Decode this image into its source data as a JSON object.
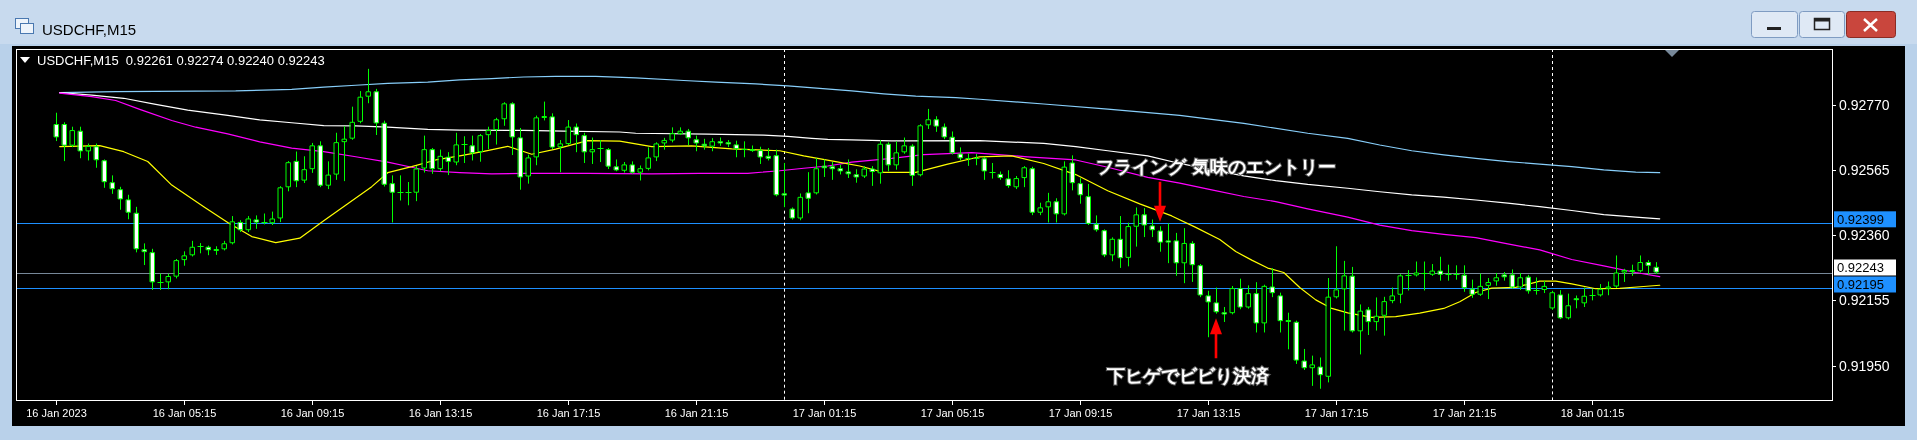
{
  "chart_data": {
    "type": "candlestick",
    "title": "USDCHF,M15",
    "subtitle": "USDCHF,M15  0.92261 0.92274 0.92240 0.92243",
    "color": "#00ff00",
    "x": [
      "2023-01-16T01:15",
      "2023-01-16T01:30",
      "2023-01-16T01:45",
      "2023-01-16T02:00",
      "2023-01-16T02:15",
      "2023-01-16T02:30",
      "2023-01-16T02:45",
      "2023-01-16T03:00",
      "2023-01-16T03:15",
      "2023-01-16T03:30",
      "2023-01-16T03:45",
      "2023-01-16T04:00",
      "2023-01-16T04:15",
      "2023-01-16T04:30",
      "2023-01-16T04:45",
      "2023-01-16T05:00",
      "2023-01-16T05:15",
      "2023-01-16T05:30",
      "2023-01-16T05:45",
      "2023-01-16T06:00",
      "2023-01-16T06:15",
      "2023-01-16T06:30",
      "2023-01-16T06:45",
      "2023-01-16T07:00",
      "2023-01-16T07:15",
      "2023-01-16T07:30",
      "2023-01-16T07:45",
      "2023-01-16T08:00",
      "2023-01-16T08:15",
      "2023-01-16T08:30",
      "2023-01-16T08:45",
      "2023-01-16T09:00",
      "2023-01-16T09:15",
      "2023-01-16T09:30",
      "2023-01-16T09:45",
      "2023-01-16T10:00",
      "2023-01-16T10:15",
      "2023-01-16T10:30",
      "2023-01-16T10:45",
      "2023-01-16T11:00",
      "2023-01-16T11:15",
      "2023-01-16T11:30",
      "2023-01-16T11:45",
      "2023-01-16T12:00",
      "2023-01-16T12:15",
      "2023-01-16T12:30",
      "2023-01-16T12:45",
      "2023-01-16T13:00",
      "2023-01-16T13:15",
      "2023-01-16T13:30",
      "2023-01-16T13:45",
      "2023-01-16T14:00",
      "2023-01-16T14:15",
      "2023-01-16T14:30",
      "2023-01-16T14:45",
      "2023-01-16T15:00",
      "2023-01-16T15:15",
      "2023-01-16T15:30",
      "2023-01-16T15:45",
      "2023-01-16T16:00",
      "2023-01-16T16:15",
      "2023-01-16T16:30",
      "2023-01-16T16:45",
      "2023-01-16T17:00",
      "2023-01-16T17:15",
      "2023-01-16T17:30",
      "2023-01-16T17:45",
      "2023-01-16T18:00",
      "2023-01-16T18:15",
      "2023-01-16T18:30",
      "2023-01-16T18:45",
      "2023-01-16T19:00",
      "2023-01-16T19:15",
      "2023-01-16T19:30",
      "2023-01-16T19:45",
      "2023-01-16T20:00",
      "2023-01-16T20:15",
      "2023-01-16T20:30",
      "2023-01-16T20:45",
      "2023-01-16T21:00",
      "2023-01-16T21:15",
      "2023-01-16T21:30",
      "2023-01-16T21:45",
      "2023-01-16T22:00",
      "2023-01-16T22:15",
      "2023-01-16T22:30",
      "2023-01-16T22:45",
      "2023-01-16T23:00",
      "2023-01-16T23:15",
      "2023-01-16T23:30",
      "2023-01-16T23:45",
      "2023-01-17T00:00",
      "2023-01-17T00:15",
      "2023-01-17T00:30",
      "2023-01-17T00:45",
      "2023-01-17T01:00",
      "2023-01-17T01:15",
      "2023-01-17T01:30",
      "2023-01-17T01:45",
      "2023-01-17T02:00",
      "2023-01-17T02:15",
      "2023-01-17T02:30",
      "2023-01-17T02:45",
      "2023-01-17T03:00",
      "2023-01-17T03:15",
      "2023-01-17T03:30",
      "2023-01-17T03:45",
      "2023-01-17T04:00",
      "2023-01-17T04:15",
      "2023-01-17T04:30",
      "2023-01-17T04:45",
      "2023-01-17T05:00",
      "2023-01-17T05:15",
      "2023-01-17T05:30",
      "2023-01-17T05:45",
      "2023-01-17T06:00",
      "2023-01-17T06:15",
      "2023-01-17T06:30",
      "2023-01-17T06:45",
      "2023-01-17T07:00",
      "2023-01-17T07:15",
      "2023-01-17T07:30",
      "2023-01-17T07:45",
      "2023-01-17T08:00",
      "2023-01-17T08:15",
      "2023-01-17T08:30",
      "2023-01-17T08:45",
      "2023-01-17T09:00",
      "2023-01-17T09:15",
      "2023-01-17T09:30",
      "2023-01-17T09:45",
      "2023-01-17T10:00",
      "2023-01-17T10:15",
      "2023-01-17T10:30",
      "2023-01-17T10:45",
      "2023-01-17T11:00",
      "2023-01-17T11:15",
      "2023-01-17T11:30",
      "2023-01-17T11:45",
      "2023-01-17T12:00",
      "2023-01-17T12:15",
      "2023-01-17T12:30",
      "2023-01-17T12:45",
      "2023-01-17T13:00",
      "2023-01-17T13:15",
      "2023-01-17T13:30",
      "2023-01-17T13:45",
      "2023-01-17T14:00",
      "2023-01-17T14:15",
      "2023-01-17T14:30",
      "2023-01-17T14:45",
      "2023-01-17T15:00",
      "2023-01-17T15:15",
      "2023-01-17T15:30",
      "2023-01-17T15:45",
      "2023-01-17T16:00",
      "2023-01-17T16:15",
      "2023-01-17T16:30",
      "2023-01-17T16:45",
      "2023-01-17T17:00",
      "2023-01-17T17:15",
      "2023-01-17T17:30",
      "2023-01-17T17:45",
      "2023-01-17T18:00",
      "2023-01-17T18:15",
      "2023-01-17T18:30",
      "2023-01-17T18:45",
      "2023-01-17T19:00",
      "2023-01-17T19:15",
      "2023-01-17T19:30",
      "2023-01-17T19:45",
      "2023-01-17T20:00",
      "2023-01-17T20:15",
      "2023-01-17T20:30",
      "2023-01-17T20:45",
      "2023-01-17T21:00",
      "2023-01-17T21:15",
      "2023-01-17T21:30",
      "2023-01-17T21:45",
      "2023-01-17T22:00",
      "2023-01-17T22:15",
      "2023-01-17T22:30",
      "2023-01-17T22:45",
      "2023-01-17T23:00",
      "2023-01-17T23:15",
      "2023-01-17T23:30",
      "2023-01-17T23:45",
      "2023-01-18T00:00",
      "2023-01-18T00:15",
      "2023-01-18T00:30",
      "2023-01-18T00:45",
      "2023-01-18T01:00",
      "2023-01-18T01:15",
      "2023-01-18T01:30",
      "2023-01-18T01:45",
      "2023-01-18T02:00",
      "2023-01-18T02:15",
      "2023-01-18T02:30",
      "2023-01-18T02:45",
      "2023-01-18T03:00",
      "2023-01-18T03:15"
    ],
    "ohlc": [
      [
        0.9271,
        0.92744,
        0.92658,
        0.92668
      ],
      [
        0.9271,
        0.92714,
        0.92595,
        0.92642
      ],
      [
        0.92642,
        0.927,
        0.92639,
        0.92691
      ],
      [
        0.92689,
        0.927,
        0.92604,
        0.92624
      ],
      [
        0.92624,
        0.92647,
        0.92597,
        0.92641
      ],
      [
        0.9264,
        0.92647,
        0.92574,
        0.92596
      ],
      [
        0.92596,
        0.92597,
        0.92511,
        0.92527
      ],
      [
        0.92527,
        0.92547,
        0.92492,
        0.92505
      ],
      [
        0.92505,
        0.92511,
        0.92442,
        0.92473
      ],
      [
        0.92473,
        0.92486,
        0.92412,
        0.92431
      ],
      [
        0.92431,
        0.92448,
        0.92308,
        0.92316
      ],
      [
        0.92316,
        0.92333,
        0.92268,
        0.92307
      ],
      [
        0.92307,
        0.92316,
        0.9219,
        0.92212
      ],
      [
        0.92212,
        0.92238,
        0.9219,
        0.92213
      ],
      [
        0.92212,
        0.92238,
        0.92192,
        0.92232
      ],
      [
        0.9223,
        0.92284,
        0.92226,
        0.92282
      ],
      [
        0.92282,
        0.92308,
        0.92266,
        0.92297
      ],
      [
        0.92297,
        0.92341,
        0.92295,
        0.92324
      ],
      [
        0.92324,
        0.92334,
        0.92305,
        0.92325
      ],
      [
        0.92324,
        0.92326,
        0.92299,
        0.92313
      ],
      [
        0.92313,
        0.92324,
        0.923,
        0.92315
      ],
      [
        0.92316,
        0.92341,
        0.92314,
        0.92335
      ],
      [
        0.92335,
        0.92419,
        0.92333,
        0.92404
      ],
      [
        0.92402,
        0.92406,
        0.92372,
        0.92376
      ],
      [
        0.92376,
        0.92419,
        0.92372,
        0.92413
      ],
      [
        0.9241,
        0.92421,
        0.92382,
        0.924
      ],
      [
        0.924,
        0.92427,
        0.92396,
        0.92399
      ],
      [
        0.92398,
        0.92433,
        0.92394,
        0.92413
      ],
      [
        0.92413,
        0.92513,
        0.92403,
        0.92511
      ],
      [
        0.92511,
        0.92592,
        0.925,
        0.9259
      ],
      [
        0.92594,
        0.92622,
        0.92513,
        0.9253
      ],
      [
        0.92532,
        0.92607,
        0.92526,
        0.92568
      ],
      [
        0.92568,
        0.92649,
        0.92558,
        0.92643
      ],
      [
        0.92643,
        0.92654,
        0.92513,
        0.92516
      ],
      [
        0.92516,
        0.92591,
        0.92507,
        0.92551
      ],
      [
        0.92551,
        0.92681,
        0.92536,
        0.92653
      ],
      [
        0.92653,
        0.92702,
        0.92532,
        0.92664
      ],
      [
        0.92664,
        0.92763,
        0.92662,
        0.92717
      ],
      [
        0.92717,
        0.92812,
        0.92714,
        0.92796
      ],
      [
        0.92796,
        0.92882,
        0.92777,
        0.92813
      ],
      [
        0.92813,
        0.92819,
        0.92677,
        0.92712
      ],
      [
        0.92714,
        0.92719,
        0.92515,
        0.92519
      ],
      [
        0.92524,
        0.92547,
        0.92402,
        0.92494
      ],
      [
        0.92496,
        0.92547,
        0.92471,
        0.92496
      ],
      [
        0.92495,
        0.92526,
        0.92456,
        0.92496
      ],
      [
        0.92494,
        0.92576,
        0.92469,
        0.9257
      ],
      [
        0.9257,
        0.92672,
        0.92559,
        0.92631
      ],
      [
        0.92631,
        0.92633,
        0.92555,
        0.92568
      ],
      [
        0.92568,
        0.92628,
        0.92563,
        0.9261
      ],
      [
        0.92607,
        0.9262,
        0.92551,
        0.92591
      ],
      [
        0.92589,
        0.92681,
        0.92582,
        0.92646
      ],
      [
        0.92644,
        0.9267,
        0.92589,
        0.92645
      ],
      [
        0.92643,
        0.92672,
        0.92597,
        0.92618
      ],
      [
        0.92622,
        0.92677,
        0.92593,
        0.92675
      ],
      [
        0.92675,
        0.927,
        0.92633,
        0.92691
      ],
      [
        0.92691,
        0.92728,
        0.92647,
        0.92725
      ],
      [
        0.92725,
        0.92777,
        0.92706,
        0.92775
      ],
      [
        0.92775,
        0.92777,
        0.92614,
        0.92668
      ],
      [
        0.92668,
        0.92696,
        0.92505,
        0.92542
      ],
      [
        0.92545,
        0.92612,
        0.92524,
        0.92605
      ],
      [
        0.92605,
        0.92735,
        0.92582,
        0.92731
      ],
      [
        0.92731,
        0.92779,
        0.92723,
        0.92733
      ],
      [
        0.92734,
        0.92742,
        0.92633,
        0.92636
      ],
      [
        0.92637,
        0.92658,
        0.9256,
        0.92649
      ],
      [
        0.92647,
        0.92721,
        0.92645,
        0.92702
      ],
      [
        0.92702,
        0.9271,
        0.92623,
        0.92675
      ],
      [
        0.92675,
        0.92681,
        0.92589,
        0.92621
      ],
      [
        0.92621,
        0.92666,
        0.92586,
        0.92631
      ],
      [
        0.92631,
        0.92658,
        0.92592,
        0.92632
      ],
      [
        0.92631,
        0.92633,
        0.9257,
        0.92576
      ],
      [
        0.92577,
        0.92597,
        0.92563,
        0.92564
      ],
      [
        0.92563,
        0.92589,
        0.92559,
        0.92583
      ],
      [
        0.92583,
        0.92591,
        0.92555,
        0.92557
      ],
      [
        0.92557,
        0.92578,
        0.92534,
        0.92571
      ],
      [
        0.92569,
        0.92635,
        0.92566,
        0.92605
      ],
      [
        0.92605,
        0.92651,
        0.92595,
        0.92649
      ],
      [
        0.92649,
        0.92665,
        0.92631,
        0.9266
      ],
      [
        0.92658,
        0.92698,
        0.92654,
        0.92681
      ],
      [
        0.92679,
        0.92698,
        0.92677,
        0.92689
      ],
      [
        0.92689,
        0.92693,
        0.92645,
        0.92665
      ],
      [
        0.92662,
        0.92672,
        0.92626,
        0.92649
      ],
      [
        0.92648,
        0.92662,
        0.92631,
        0.9264
      ],
      [
        0.92639,
        0.92664,
        0.92626,
        0.92656
      ],
      [
        0.92656,
        0.92666,
        0.92643,
        0.92649
      ],
      [
        0.92653,
        0.92658,
        0.92639,
        0.92646
      ],
      [
        0.92646,
        0.92656,
        0.92607,
        0.92631
      ],
      [
        0.92629,
        0.92654,
        0.92607,
        0.92628
      ],
      [
        0.92631,
        0.92641,
        0.92624,
        0.92625
      ],
      [
        0.92628,
        0.92637,
        0.92586,
        0.92605
      ],
      [
        0.9261,
        0.92633,
        0.92597,
        0.92601
      ],
      [
        0.92612,
        0.92628,
        0.92484,
        0.92486
      ],
      [
        0.92492,
        0.92586,
        0.9245,
        0.92485
      ],
      [
        0.92444,
        0.92446,
        0.92411,
        0.92413
      ],
      [
        0.92413,
        0.9249,
        0.92409,
        0.92481
      ],
      [
        0.92495,
        0.92557,
        0.92431,
        0.92475
      ],
      [
        0.92492,
        0.92601,
        0.9249,
        0.92571
      ],
      [
        0.92579,
        0.92597,
        0.92545,
        0.92571
      ],
      [
        0.92577,
        0.92589,
        0.92536,
        0.92568
      ],
      [
        0.92571,
        0.9258,
        0.92553,
        0.92561
      ],
      [
        0.92561,
        0.92597,
        0.92542,
        0.92552
      ],
      [
        0.92552,
        0.92566,
        0.92527,
        0.92542
      ],
      [
        0.92545,
        0.92576,
        0.92542,
        0.9257
      ],
      [
        0.9257,
        0.92576,
        0.92517,
        0.92559
      ],
      [
        0.92555,
        0.92658,
        0.92524,
        0.92648
      ],
      [
        0.92648,
        0.92651,
        0.92563,
        0.9258
      ],
      [
        0.9258,
        0.92654,
        0.92568,
        0.92621
      ],
      [
        0.92621,
        0.92666,
        0.92618,
        0.92643
      ],
      [
        0.92642,
        0.92645,
        0.92517,
        0.92547
      ],
      [
        0.92549,
        0.92708,
        0.92547,
        0.92706
      ],
      [
        0.92706,
        0.92756,
        0.92696,
        0.92725
      ],
      [
        0.92725,
        0.92733,
        0.92687,
        0.92702
      ],
      [
        0.92702,
        0.9271,
        0.92664,
        0.92668
      ],
      [
        0.9267,
        0.92685,
        0.92616,
        0.92618
      ],
      [
        0.92617,
        0.92635,
        0.92597,
        0.92602
      ],
      [
        0.92602,
        0.92616,
        0.9258,
        0.92601
      ],
      [
        0.92601,
        0.92614,
        0.92582,
        0.92602
      ],
      [
        0.92602,
        0.92605,
        0.92536,
        0.92561
      ],
      [
        0.92557,
        0.92586,
        0.9254,
        0.92558
      ],
      [
        0.92553,
        0.92559,
        0.92536,
        0.9254
      ],
      [
        0.92539,
        0.92563,
        0.92511,
        0.92515
      ],
      [
        0.92511,
        0.92545,
        0.92507,
        0.9254
      ],
      [
        0.9254,
        0.92576,
        0.92513,
        0.92574
      ],
      [
        0.92571,
        0.92574,
        0.92425,
        0.92431
      ],
      [
        0.92431,
        0.92461,
        0.92425,
        0.92448
      ],
      [
        0.92448,
        0.92492,
        0.92402,
        0.92467
      ],
      [
        0.92467,
        0.92475,
        0.92402,
        0.92426
      ],
      [
        0.92426,
        0.92591,
        0.92424,
        0.92576
      ],
      [
        0.92589,
        0.9261,
        0.92503,
        0.92524
      ],
      [
        0.92524,
        0.92538,
        0.92461,
        0.92486
      ],
      [
        0.92483,
        0.9252,
        0.92394,
        0.92396
      ],
      [
        0.92396,
        0.92421,
        0.92373,
        0.92376
      ],
      [
        0.92376,
        0.92377,
        0.92293,
        0.92297
      ],
      [
        0.92297,
        0.92352,
        0.9228,
        0.92349
      ],
      [
        0.92349,
        0.92419,
        0.92259,
        0.92288
      ],
      [
        0.92289,
        0.92398,
        0.92264,
        0.92389
      ],
      [
        0.92387,
        0.92446,
        0.92326,
        0.92426
      ],
      [
        0.92426,
        0.92444,
        0.92356,
        0.92391
      ],
      [
        0.92391,
        0.92408,
        0.92356,
        0.92376
      ],
      [
        0.92375,
        0.92387,
        0.9231,
        0.92337
      ],
      [
        0.92344,
        0.92396,
        0.92274,
        0.92337
      ],
      [
        0.92344,
        0.92366,
        0.92234,
        0.92272
      ],
      [
        0.92272,
        0.92381,
        0.92211,
        0.92336
      ],
      [
        0.92336,
        0.9234,
        0.92215,
        0.92266
      ],
      [
        0.92266,
        0.92268,
        0.92167,
        0.92171
      ],
      [
        0.92171,
        0.92184,
        0.92041,
        0.92149
      ],
      [
        0.92149,
        0.92194,
        0.92115,
        0.92118
      ],
      [
        0.92118,
        0.92133,
        0.92089,
        0.92111
      ],
      [
        0.92115,
        0.92199,
        0.92113,
        0.92194
      ],
      [
        0.92194,
        0.92222,
        0.92129,
        0.92133
      ],
      [
        0.92133,
        0.92201,
        0.92131,
        0.92178
      ],
      [
        0.92178,
        0.92211,
        0.92056,
        0.92083
      ],
      [
        0.92083,
        0.92203,
        0.92056,
        0.92201
      ],
      [
        0.92199,
        0.92255,
        0.92167,
        0.92178
      ],
      [
        0.92171,
        0.92178,
        0.92056,
        0.9209
      ],
      [
        0.92092,
        0.92115,
        0.92003,
        0.9209
      ],
      [
        0.92088,
        0.9209,
        0.91957,
        0.91966
      ],
      [
        0.91966,
        0.92001,
        0.91938,
        0.91942
      ],
      [
        0.91942,
        0.9198,
        0.91888,
        0.91954
      ],
      [
        0.91947,
        0.91974,
        0.91879,
        0.9192
      ],
      [
        0.91915,
        0.92224,
        0.91899,
        0.92167
      ],
      [
        0.92165,
        0.92324,
        0.92163,
        0.9219
      ],
      [
        0.9219,
        0.92278,
        0.92062,
        0.92234
      ],
      [
        0.92233,
        0.92259,
        0.92056,
        0.92058
      ],
      [
        0.92058,
        0.92141,
        0.91987,
        0.92123
      ],
      [
        0.92127,
        0.92133,
        0.92048,
        0.92087
      ],
      [
        0.92087,
        0.92163,
        0.92062,
        0.92107
      ],
      [
        0.92107,
        0.92165,
        0.92046,
        0.92153
      ],
      [
        0.92153,
        0.92194,
        0.92148,
        0.92171
      ],
      [
        0.92173,
        0.92236,
        0.92148,
        0.92234
      ],
      [
        0.92233,
        0.92249,
        0.92188,
        0.92234
      ],
      [
        0.92234,
        0.92276,
        0.92232,
        0.92243
      ],
      [
        0.9224,
        0.92276,
        0.92188,
        0.92241
      ],
      [
        0.92236,
        0.92268,
        0.92234,
        0.92249
      ],
      [
        0.92249,
        0.92291,
        0.92219,
        0.92236
      ],
      [
        0.92237,
        0.92266,
        0.92219,
        0.92238
      ],
      [
        0.92238,
        0.92264,
        0.92222,
        0.92237
      ],
      [
        0.92236,
        0.92264,
        0.92184,
        0.92194
      ],
      [
        0.92192,
        0.92219,
        0.92165,
        0.92173
      ],
      [
        0.92173,
        0.92238,
        0.92171,
        0.92201
      ],
      [
        0.92201,
        0.92224,
        0.92161,
        0.92213
      ],
      [
        0.92215,
        0.9224,
        0.92203,
        0.92228
      ],
      [
        0.92237,
        0.92243,
        0.92219,
        0.92228
      ],
      [
        0.92237,
        0.92251,
        0.92194,
        0.92196
      ],
      [
        0.92196,
        0.9224,
        0.9219,
        0.92228
      ],
      [
        0.9223,
        0.92234,
        0.92178,
        0.92184
      ],
      [
        0.92187,
        0.92226,
        0.92175,
        0.92188
      ],
      [
        0.92188,
        0.92215,
        0.9218,
        0.92201
      ],
      [
        0.9213,
        0.92184,
        0.92127,
        0.92181
      ],
      [
        0.92174,
        0.92186,
        0.92098,
        0.92099
      ],
      [
        0.92099,
        0.92175,
        0.92097,
        0.9214
      ],
      [
        0.92162,
        0.92169,
        0.92132,
        0.92156
      ],
      [
        0.92146,
        0.92194,
        0.92136,
        0.9217
      ],
      [
        0.9217,
        0.9219,
        0.92157,
        0.92171
      ],
      [
        0.92171,
        0.92205,
        0.92169,
        0.92192
      ],
      [
        0.92192,
        0.92213,
        0.92173,
        0.92199
      ],
      [
        0.92199,
        0.92295,
        0.92196,
        0.92243
      ],
      [
        0.92243,
        0.92253,
        0.92215,
        0.92251
      ],
      [
        0.92247,
        0.92266,
        0.92234,
        0.9225
      ],
      [
        0.92247,
        0.92295,
        0.92245,
        0.92276
      ],
      [
        0.92276,
        0.9228,
        0.92238,
        0.92264
      ],
      [
        0.92261,
        0.92274,
        0.9224,
        0.92243
      ]
    ],
    "series": [
      {
        "type": "line",
        "color": "#87cefa",
        "x": [
          "2023-01-16T01:22",
          "2023-01-16T03:07",
          "2023-01-16T06:52",
          "2023-01-16T08:37",
          "2023-01-16T09:37",
          "2023-01-16T10:37",
          "2023-01-16T11:37",
          "2023-01-16T12:52",
          "2023-01-16T13:52",
          "2023-01-16T14:52",
          "2023-01-16T15:52",
          "2023-01-16T16:52",
          "2023-01-16T18:07",
          "2023-01-16T19:22",
          "2023-01-16T20:52",
          "2023-01-16T21:52",
          "2023-01-16T23:07",
          "2023-01-17T00:07",
          "2023-01-17T01:07",
          "2023-01-17T02:07",
          "2023-01-17T03:07",
          "2023-01-17T04:07",
          "2023-01-17T05:22",
          "2023-01-17T06:07",
          "2023-01-17T08:07",
          "2023-01-17T10:07",
          "2023-01-17T12:22",
          "2023-01-17T14:22",
          "2023-01-17T16:22",
          "2023-01-17T17:37",
          "2023-01-17T18:37",
          "2023-01-17T19:37",
          "2023-01-17T20:37",
          "2023-01-17T21:37",
          "2023-01-17T22:37",
          "2023-01-17T23:37",
          "2023-01-18T00:37",
          "2023-01-18T01:37",
          "2023-01-18T02:37",
          "2023-01-18T03:22"
        ],
        "values": [
          0.92809,
          0.92812,
          0.92814,
          0.92819,
          0.92826,
          0.92832,
          0.92838,
          0.92842,
          0.92849,
          0.92853,
          0.92858,
          0.9286,
          0.9286,
          0.92855,
          0.92847,
          0.92842,
          0.92836,
          0.9283,
          0.92822,
          0.92814,
          0.92805,
          0.92798,
          0.92793,
          0.92788,
          0.92773,
          0.92757,
          0.92737,
          0.92712,
          0.92681,
          0.92665,
          0.92644,
          0.92626,
          0.92613,
          0.92602,
          0.92592,
          0.92584,
          0.92576,
          0.92566,
          0.92559,
          0.92557
        ]
      },
      {
        "type": "line",
        "color": "#ffffff",
        "x": [
          "2023-01-16T01:22",
          "2023-01-16T02:22",
          "2023-01-16T03:22",
          "2023-01-16T04:22",
          "2023-01-16T05:22",
          "2023-01-16T06:37",
          "2023-01-16T07:37",
          "2023-01-16T08:37",
          "2023-01-16T09:37",
          "2023-01-16T10:37",
          "2023-01-16T11:37",
          "2023-01-16T12:52",
          "2023-01-16T13:52",
          "2023-01-16T15:52",
          "2023-01-16T17:07",
          "2023-01-16T18:52",
          "2023-01-16T19:22",
          "2023-01-16T21:37",
          "2023-01-16T23:22",
          "2023-01-17T00:07",
          "2023-01-17T00:52",
          "2023-01-17T01:22",
          "2023-01-17T02:07",
          "2023-01-17T03:22",
          "2023-01-17T06:07",
          "2023-01-17T08:07",
          "2023-01-17T09:07",
          "2023-01-17T10:07",
          "2023-01-17T11:22",
          "2023-01-17T12:22",
          "2023-01-17T13:22",
          "2023-01-17T14:22",
          "2023-01-17T15:22",
          "2023-01-17T16:22",
          "2023-01-17T17:37",
          "2023-01-17T18:37",
          "2023-01-17T19:37",
          "2023-01-17T20:37",
          "2023-01-17T21:37",
          "2023-01-17T22:37",
          "2023-01-17T23:37",
          "2023-01-18T00:37",
          "2023-01-18T01:37",
          "2023-01-18T02:37",
          "2023-01-18T03:22"
        ],
        "values": [
          0.92809,
          0.92801,
          0.92791,
          0.92772,
          0.92754,
          0.92737,
          0.92723,
          0.92714,
          0.92705,
          0.92704,
          0.927,
          0.92693,
          0.92691,
          0.9269,
          0.92688,
          0.92685,
          0.92681,
          0.92678,
          0.92675,
          0.92671,
          0.92665,
          0.92662,
          0.9266,
          0.92657,
          0.92658,
          0.92649,
          0.92639,
          0.92626,
          0.9261,
          0.92586,
          0.92566,
          0.92547,
          0.92532,
          0.9252,
          0.92508,
          0.92497,
          0.92487,
          0.9248,
          0.92471,
          0.92461,
          0.9245,
          0.92438,
          0.92425,
          0.92417,
          0.92412
        ]
      },
      {
        "type": "line",
        "color": "#ff00ff",
        "x": [
          "2023-01-16T01:22",
          "2023-01-16T02:22",
          "2023-01-16T03:07",
          "2023-01-16T03:52",
          "2023-01-16T04:52",
          "2023-01-16T05:37",
          "2023-01-16T06:37",
          "2023-01-16T07:37",
          "2023-01-16T08:37",
          "2023-01-16T09:37",
          "2023-01-16T10:37",
          "2023-01-16T11:37",
          "2023-01-16T12:22",
          "2023-01-16T12:52",
          "2023-01-16T13:52",
          "2023-01-16T14:52",
          "2023-01-16T15:52",
          "2023-01-16T17:52",
          "2023-01-16T19:52",
          "2023-01-16T21:22",
          "2023-01-16T22:52",
          "2023-01-16T23:52",
          "2023-01-17T00:37",
          "2023-01-17T01:22",
          "2023-01-17T02:07",
          "2023-01-17T03:22",
          "2023-01-17T04:22",
          "2023-01-17T05:52",
          "2023-01-17T07:37",
          "2023-01-17T09:07",
          "2023-01-17T10:07",
          "2023-01-17T11:22",
          "2023-01-17T12:22",
          "2023-01-17T13:22",
          "2023-01-17T14:22",
          "2023-01-17T15:22",
          "2023-01-17T16:22",
          "2023-01-17T17:37",
          "2023-01-17T18:37",
          "2023-01-17T19:37",
          "2023-01-17T20:37",
          "2023-01-17T21:37",
          "2023-01-17T22:37",
          "2023-01-17T23:37",
          "2023-01-18T00:37",
          "2023-01-18T01:37",
          "2023-01-18T02:37",
          "2023-01-18T03:22"
        ],
        "values": [
          0.92807,
          0.92796,
          0.92784,
          0.92756,
          0.92721,
          0.927,
          0.92679,
          0.92654,
          0.92634,
          0.92623,
          0.92607,
          0.9259,
          0.92574,
          0.92563,
          0.92557,
          0.92553,
          0.92555,
          0.92555,
          0.92553,
          0.92555,
          0.92555,
          0.92563,
          0.92571,
          0.92578,
          0.9259,
          0.92602,
          0.92614,
          0.9262,
          0.92607,
          0.92597,
          0.92574,
          0.92542,
          0.92524,
          0.92503,
          0.92482,
          0.92466,
          0.92443,
          0.92417,
          0.92392,
          0.92375,
          0.92363,
          0.92353,
          0.92333,
          0.92314,
          0.92284,
          0.92264,
          0.92243,
          0.9223
        ]
      },
      {
        "type": "line",
        "color": "#ffff00",
        "x": [
          "2023-01-16T01:22",
          "2023-01-16T02:37",
          "2023-01-16T03:22",
          "2023-01-16T04:07",
          "2023-01-16T04:52",
          "2023-01-16T05:52",
          "2023-01-16T06:37",
          "2023-01-16T07:22",
          "2023-01-16T08:07",
          "2023-01-16T08:52",
          "2023-01-16T09:37",
          "2023-01-16T10:22",
          "2023-01-16T11:07",
          "2023-01-16T11:37",
          "2023-01-16T12:22",
          "2023-01-16T13:07",
          "2023-01-16T13:52",
          "2023-01-16T14:37",
          "2023-01-16T15:22",
          "2023-01-16T16:07",
          "2023-01-16T16:52",
          "2023-01-16T17:52",
          "2023-01-16T18:52",
          "2023-01-16T19:52",
          "2023-01-16T21:07",
          "2023-01-16T22:22",
          "2023-01-16T23:52",
          "2023-01-17T00:37",
          "2023-01-17T01:37",
          "2023-01-17T02:22",
          "2023-01-17T03:07",
          "2023-01-17T04:07",
          "2023-01-17T05:07",
          "2023-01-17T06:07",
          "2023-01-17T07:07",
          "2023-01-17T08:07",
          "2023-01-17T09:07",
          "2023-01-17T10:07",
          "2023-01-17T11:07",
          "2023-01-17T12:07",
          "2023-01-17T12:52",
          "2023-01-17T13:37",
          "2023-01-17T14:07",
          "2023-01-17T14:37",
          "2023-01-17T15:07",
          "2023-01-17T15:37",
          "2023-01-17T16:07",
          "2023-01-17T16:37",
          "2023-01-17T17:07",
          "2023-01-17T17:37",
          "2023-01-17T18:22",
          "2023-01-17T19:07",
          "2023-01-17T19:52",
          "2023-01-17T20:37",
          "2023-01-17T21:07",
          "2023-01-17T21:37",
          "2023-01-17T22:07",
          "2023-01-17T22:52",
          "2023-01-17T23:37",
          "2023-01-18T00:07",
          "2023-01-18T00:37",
          "2023-01-18T01:22",
          "2023-01-18T02:07",
          "2023-01-18T02:52",
          "2023-01-18T03:22"
        ],
        "values": [
          0.92639,
          0.92642,
          0.92623,
          0.92592,
          0.92518,
          0.9245,
          0.924,
          0.92356,
          0.92337,
          0.92351,
          0.92406,
          0.92459,
          0.92513,
          0.92557,
          0.92576,
          0.92597,
          0.9261,
          0.92624,
          0.9264,
          0.92615,
          0.92631,
          0.92658,
          0.92656,
          0.92639,
          0.92641,
          0.92632,
          0.92626,
          0.9261,
          0.92592,
          0.92578,
          0.92558,
          0.92558,
          0.92584,
          0.92607,
          0.9261,
          0.92586,
          0.92551,
          0.925,
          0.92459,
          0.92421,
          0.92385,
          0.92347,
          0.92309,
          0.92282,
          0.92257,
          0.92243,
          0.92196,
          0.92157,
          0.9213,
          0.92116,
          0.92102,
          0.92104,
          0.92115,
          0.9213,
          0.92151,
          0.9218,
          0.92194,
          0.92196,
          0.92216,
          0.92216,
          0.92207,
          0.92192,
          0.92193,
          0.92199,
          0.92203
        ]
      }
    ],
    "xlim": [
      "2023-01-16T00:00",
      "2023-01-18T08:45"
    ],
    "xticks": [
      {
        "value": "2023-01-16T01:15",
        "label": "16 Jan 2023"
      },
      {
        "value": "2023-01-16T05:15",
        "label": "16 Jan 05:15"
      },
      {
        "value": "2023-01-16T09:15",
        "label": "16 Jan 09:15"
      },
      {
        "value": "2023-01-16T13:15",
        "label": "16 Jan 13:15"
      },
      {
        "value": "2023-01-16T17:15",
        "label": "16 Jan 17:15"
      },
      {
        "value": "2023-01-16T21:15",
        "label": "16 Jan 21:15"
      },
      {
        "value": "2023-01-17T01:15",
        "label": "17 Jan 01:15"
      },
      {
        "value": "2023-01-17T05:15",
        "label": "17 Jan 05:15"
      },
      {
        "value": "2023-01-17T09:15",
        "label": "17 Jan 09:15"
      },
      {
        "value": "2023-01-17T13:15",
        "label": "17 Jan 13:15"
      },
      {
        "value": "2023-01-17T17:15",
        "label": "17 Jan 17:15"
      },
      {
        "value": "2023-01-17T21:15",
        "label": "17 Jan 21:15"
      },
      {
        "value": "2023-01-18T01:15",
        "label": "18 Jan 01:15"
      }
    ],
    "ylim": [
      0.91842,
      0.92946
    ],
    "yticks": [
      {
        "value": 0.9277,
        "label": "0.92770"
      },
      0.92565,
      {
        "value": 0.9236,
        "label": "0.92360"
      },
      0.92155,
      {
        "value": 0.9195,
        "label": "0.91950"
      }
    ],
    "ref_lines": [
      {
        "axis": "y",
        "value": 0.92399,
        "label": "0.92399",
        "color": "#1e90ff"
      },
      {
        "axis": "y",
        "value": 0.92243,
        "label": "0.92243",
        "color": "#778899"
      },
      {
        "axis": "y",
        "value": 0.92195,
        "label": "0.92195",
        "color": "#1e90ff"
      },
      {
        "axis": "x",
        "value": "2023-01-17T00:00",
        "color": "#ffffff",
        "line_style": "dashed"
      },
      {
        "axis": "x",
        "value": "2023-01-18T00:00",
        "color": "#ffffff",
        "line_style": "dashed"
      }
    ],
    "annotations": [
      {
        "text": "フライング 気味のエントリー",
        "x": "2023-01-17T11:45",
        "y": 0.92387
      },
      {
        "text": "下ヒゲでビビり決済",
        "x": "2023-01-17T13:30",
        "y": 0.92115
      }
    ]
  }
}
